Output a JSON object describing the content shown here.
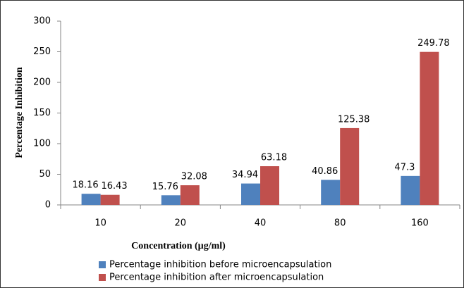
{
  "chart_data": {
    "type": "bar",
    "x_label": "Concentration (µg/ml)",
    "y_label": "Percentage Inhibition",
    "categories": [
      "10",
      "20",
      "40",
      "80",
      "160"
    ],
    "series": [
      {
        "name": "Percentage inhibition before microencapsulation",
        "color": "#4f81bd",
        "values": [
          18.16,
          15.76,
          34.94,
          40.86,
          47.3
        ]
      },
      {
        "name": "Percentage inhibition after microencapsulation",
        "color": "#c0504d",
        "values": [
          16.43,
          32.08,
          63.18,
          125.38,
          249.78
        ]
      }
    ],
    "ylim": [
      0,
      300
    ],
    "yticks": [
      0,
      50,
      100,
      150,
      200,
      250,
      300
    ],
    "grid": false
  }
}
